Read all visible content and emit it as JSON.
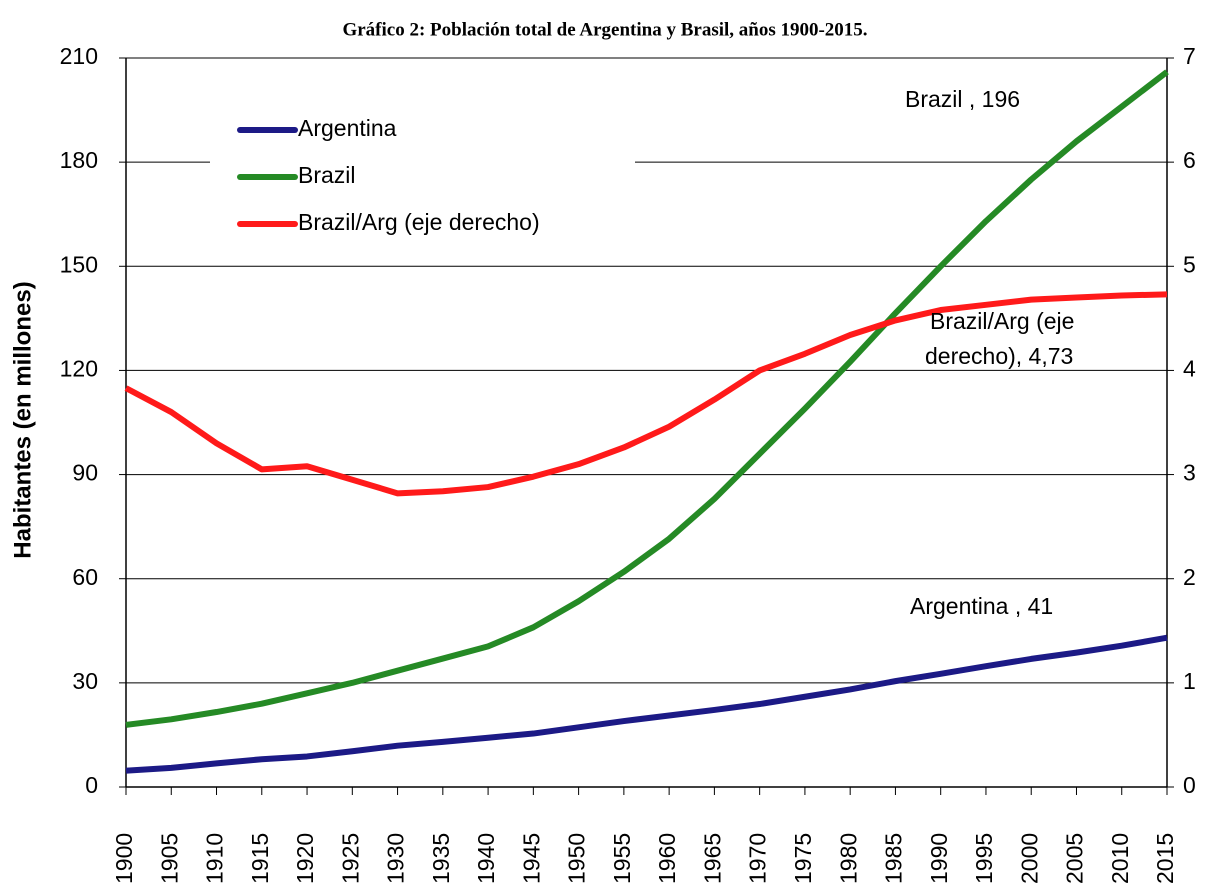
{
  "chart_data": {
    "type": "line",
    "title": "Gráfico 2: Población total de Argentina y Brasil, años 1900-2015.",
    "y_label": "Habitantes (en millones)",
    "x": [
      1900,
      1905,
      1910,
      1915,
      1920,
      1925,
      1930,
      1935,
      1940,
      1945,
      1950,
      1955,
      1960,
      1965,
      1970,
      1975,
      1980,
      1985,
      1990,
      1995,
      2000,
      2005,
      2010,
      2015
    ],
    "xlim": [
      1900,
      2015
    ],
    "xticks": [
      1900,
      1905,
      1910,
      1915,
      1920,
      1925,
      1930,
      1935,
      1940,
      1945,
      1950,
      1955,
      1960,
      1965,
      1970,
      1975,
      1980,
      1985,
      1990,
      1995,
      2000,
      2005,
      2010,
      2015
    ],
    "ylim": [
      0,
      210
    ],
    "yticks": [
      0,
      30,
      60,
      90,
      120,
      150,
      180,
      210
    ],
    "y2lim": [
      0,
      7
    ],
    "y2ticks": [
      0,
      1,
      2,
      3,
      4,
      5,
      6,
      7
    ],
    "grid": true,
    "legend": "top-left",
    "series": [
      {
        "name": "Argentina",
        "color": "#1c1a86",
        "values": [
          4.7,
          5.5,
          6.8,
          8,
          8.8,
          10.3,
          11.9,
          13,
          14.2,
          15.4,
          17.2,
          19,
          20.6,
          22.2,
          23.9,
          26,
          28.1,
          30.5,
          32.6,
          34.8,
          36.9,
          38.7,
          40.7,
          43
        ]
      },
      {
        "name": "Brazil",
        "color": "#258a25",
        "values": [
          17.9,
          19.5,
          21.6,
          24,
          27,
          30,
          33.5,
          37,
          40.5,
          46,
          53.5,
          62,
          71.5,
          83,
          96,
          109,
          122.5,
          136.5,
          150,
          163,
          175,
          186,
          196,
          206
        ]
      },
      {
        "name": "Brazil/Arg (eje derecho)",
        "color": "#ff1a1a",
        "axis": "y2",
        "values": [
          3.83,
          3.6,
          3.3,
          3.05,
          3.08,
          2.95,
          2.82,
          2.84,
          2.88,
          2.98,
          3.1,
          3.26,
          3.46,
          3.72,
          4.0,
          4.16,
          4.34,
          4.48,
          4.58,
          4.63,
          4.68,
          4.7,
          4.72,
          4.73
        ]
      }
    ],
    "annotations": [
      "Brazil , 196",
      "Argentina , 41",
      "Brazil/Arg (eje",
      "derecho), 4,73"
    ]
  }
}
